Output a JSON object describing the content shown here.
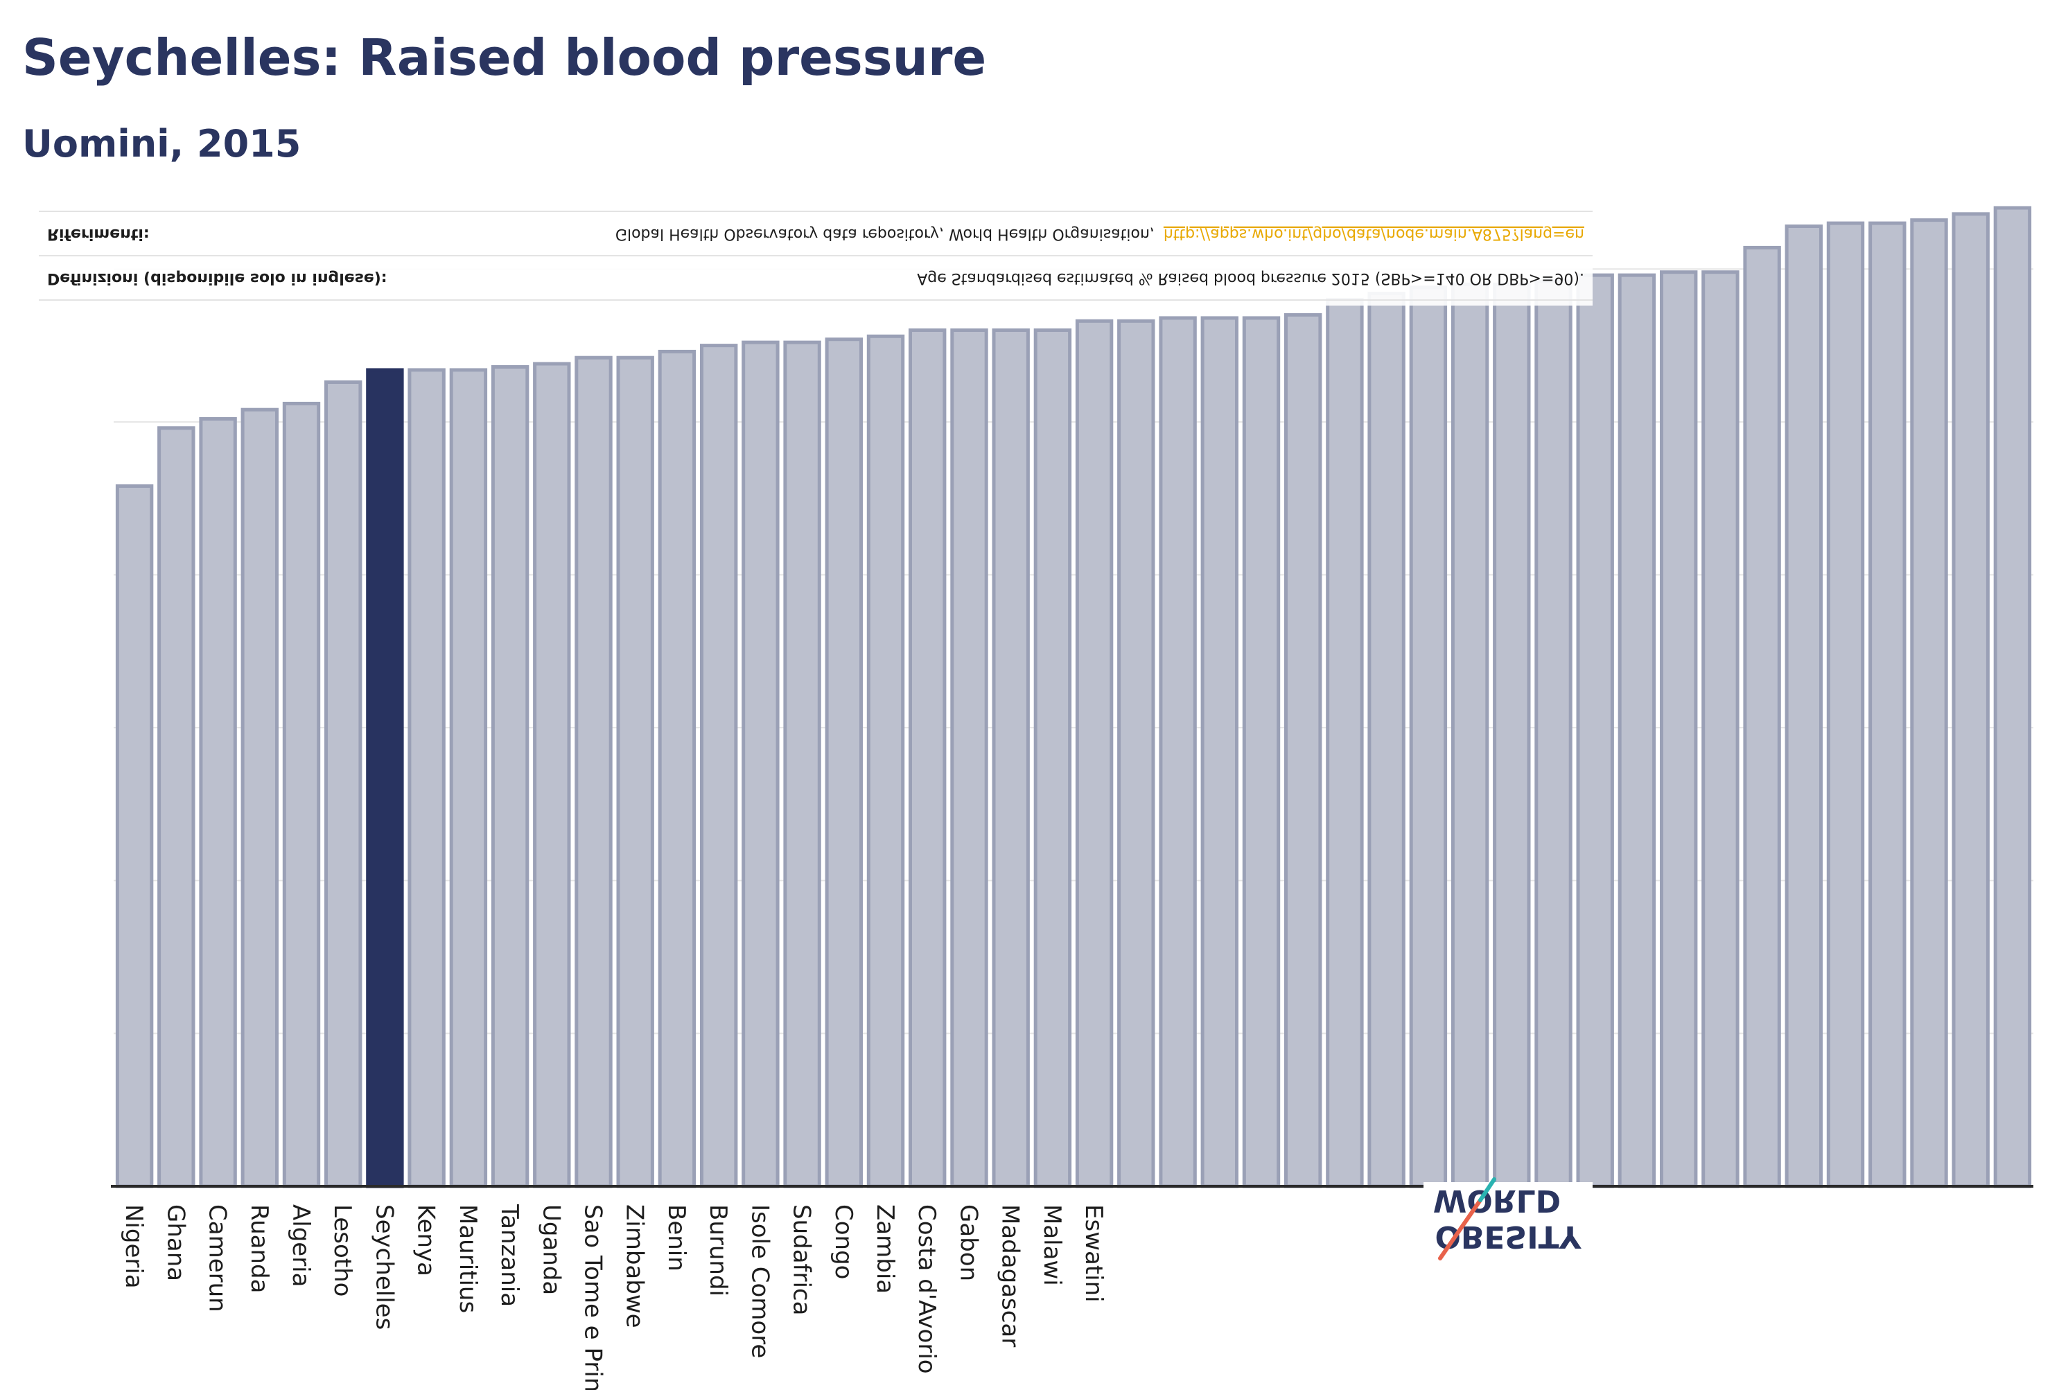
{
  "chart_data": {
    "type": "bar",
    "title": "Seychelles: Raised blood pressure",
    "subtitle": "Uomini, 2015",
    "highlighted_category": "Seychelles",
    "categories": [
      "Nigeria",
      "Ghana",
      "Camerun",
      "Ruanda",
      "Algeria",
      "Lesotho",
      "Seychelles",
      "Kenya",
      "Mauritius",
      "Tanzania",
      "Uganda",
      "Sao Tome e Principe",
      "Zimbabwe",
      "Benin",
      "Burundi",
      "Isole Comore",
      "Sudafrica",
      "Congo",
      "Zambia",
      "Costa d'Avorio",
      "Gabon",
      "Madagascar",
      "Malawi",
      "Eswatini",
      "",
      "",
      "",
      "",
      "",
      "",
      "",
      "",
      "",
      "",
      "",
      "",
      "",
      "",
      "",
      "",
      "",
      "",
      "",
      "",
      "",
      ""
    ],
    "values": [
      22.9,
      24.8,
      25.1,
      25.4,
      25.6,
      26.3,
      26.7,
      26.7,
      26.7,
      26.8,
      26.9,
      27.1,
      27.1,
      27.3,
      27.5,
      27.6,
      27.6,
      27.7,
      27.8,
      28.0,
      28.0,
      28.0,
      28.0,
      28.3,
      28.3,
      28.4,
      28.4,
      28.4,
      28.5,
      29.0,
      29.2,
      29.4,
      29.5,
      29.5,
      29.6,
      29.8,
      29.8,
      29.9,
      29.9,
      30.7,
      31.4,
      31.5,
      31.5,
      31.6,
      31.8,
      32.0
    ],
    "ylim": [
      0,
      32
    ],
    "grid": true,
    "colors": {
      "bar": "#bcc0ce",
      "bar_border": "#9aa0b6",
      "highlight": "#283360",
      "grid": "#e6e6e6",
      "axis": "#2a2a2a"
    }
  },
  "definitions": {
    "label": "Definizioni (disponibile solo in inglese):",
    "text": "Age Standardised estimated % Raised blood pressure 2015 (SBP>=140 OR DBP>=90)."
  },
  "references": {
    "label": "Riferimenti:",
    "text": "Global Health Observatory data repository, World Health Organisation,",
    "link": "http://apps.who.int/gho/data/node.main.A875?lang=en"
  },
  "logo": {
    "top": "WORLD",
    "bottom": "OBESITY"
  }
}
